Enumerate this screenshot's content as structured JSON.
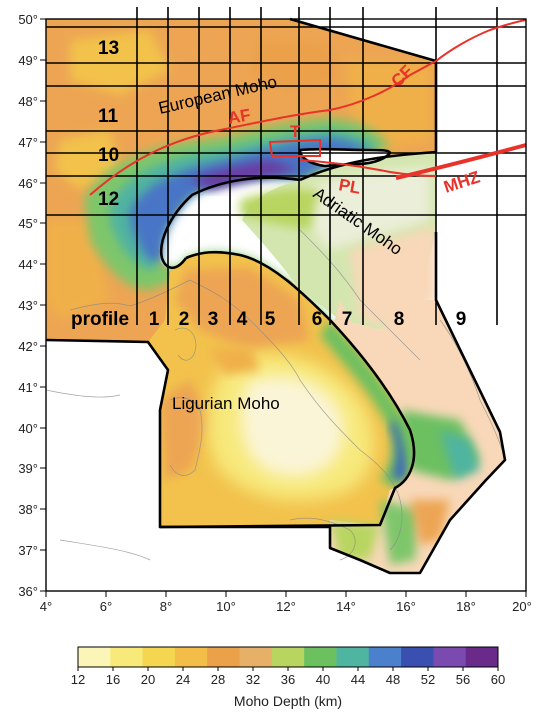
{
  "map": {
    "lon_ticks": [
      "4°",
      "6°",
      "8°",
      "10°",
      "12°",
      "14°",
      "16°",
      "18°",
      "20°"
    ],
    "lat_ticks": [
      "36°",
      "37°",
      "38°",
      "39°",
      "40°",
      "41°",
      "42°",
      "43°",
      "44°",
      "45°",
      "46°",
      "47°",
      "48°",
      "49°",
      "50°"
    ],
    "profile_label": "profile",
    "profiles_ns": [
      "1",
      "2",
      "3",
      "4",
      "5",
      "6",
      "7",
      "8",
      "9"
    ],
    "profiles_ew": [
      "13",
      "11",
      "10",
      "12"
    ],
    "regions": {
      "european": "European Moho",
      "adriatic": "Adriatic Moho",
      "ligurian": "Ligurian Moho"
    },
    "faults": {
      "cf": "CF",
      "af": "AF",
      "t": "T",
      "pl": "PL",
      "mhz": "MHZ"
    },
    "colors": {
      "fault": "#e8322a",
      "profile_line": "#000000"
    }
  },
  "colorbar": {
    "ticks": [
      "12",
      "16",
      "20",
      "24",
      "28",
      "32",
      "36",
      "40",
      "44",
      "48",
      "52",
      "56",
      "60"
    ],
    "title": "Moho Depth (km)",
    "range": [
      12,
      60
    ],
    "colors": [
      "#fbf5b8",
      "#f7e97a",
      "#f4d650",
      "#f2be48",
      "#eba04a",
      "#e6b068",
      "#b8d560",
      "#6cc060",
      "#4fb4a0",
      "#4b80cc",
      "#3a50b0",
      "#7a4ab0",
      "#6a2a8a"
    ]
  }
}
